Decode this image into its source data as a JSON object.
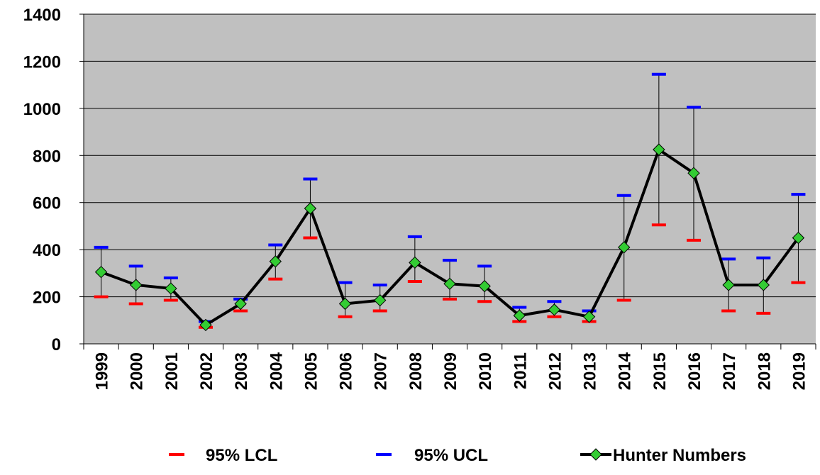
{
  "chart_data": {
    "type": "line",
    "categories": [
      "1999",
      "2000",
      "2001",
      "2002",
      "2003",
      "2004",
      "2005",
      "2006",
      "2007",
      "2008",
      "2009",
      "2010",
      "2011",
      "2012",
      "2013",
      "2014",
      "2015",
      "2016",
      "2017",
      "2018",
      "2019"
    ],
    "series": [
      {
        "name": "95% LCL",
        "color": "#ff0000",
        "values": [
          200,
          170,
          185,
          70,
          140,
          275,
          450,
          115,
          140,
          265,
          190,
          180,
          95,
          115,
          95,
          185,
          505,
          440,
          140,
          130,
          260
        ]
      },
      {
        "name": "95% UCL",
        "color": "#0000ff",
        "values": [
          410,
          330,
          280,
          95,
          190,
          420,
          700,
          260,
          250,
          455,
          355,
          330,
          155,
          180,
          140,
          630,
          1145,
          1005,
          360,
          365,
          635
        ]
      },
      {
        "name": "Hunter Numbers",
        "color": "#000000",
        "marker_color": "#33cc33",
        "values": [
          305,
          250,
          235,
          80,
          170,
          350,
          575,
          170,
          185,
          345,
          255,
          245,
          120,
          145,
          115,
          410,
          825,
          725,
          250,
          250,
          450
        ]
      }
    ],
    "ylim": [
      0,
      1400
    ],
    "yticks": [
      0,
      200,
      400,
      600,
      800,
      1000,
      1200,
      1400
    ],
    "grid": true,
    "legend": "bottom"
  }
}
